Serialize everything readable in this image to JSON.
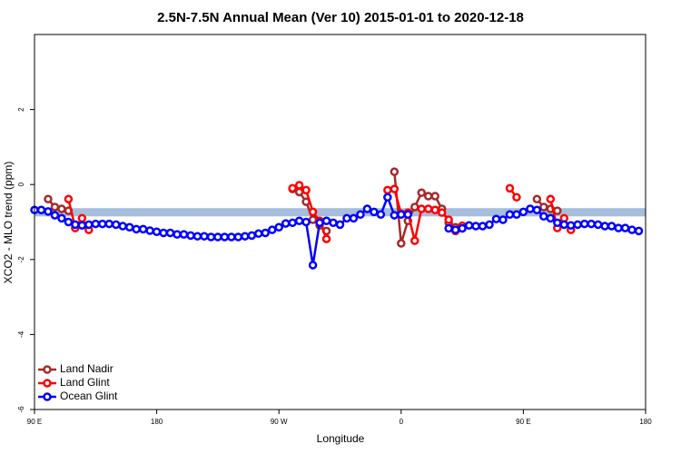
{
  "chart_data": {
    "type": "line",
    "title": "2.5N-7.5N Annual Mean (Ver 10)   2015-01-01 to 2020-12-18",
    "x_label": "Longitude",
    "y_label": "XCO2 - MLO trend (ppm)",
    "xlim": [
      90,
      540
    ],
    "ylim": [
      -6,
      4
    ],
    "xticks": [
      {
        "value": 90,
        "label": "90 E"
      },
      180,
      {
        "value": 270,
        "label": "90 W"
      },
      {
        "value": 360,
        "label": "0"
      },
      {
        "value": 450,
        "label": "90 E"
      },
      {
        "value": 540,
        "label": "180"
      }
    ],
    "yticks": [
      -6,
      -4,
      -2,
      0,
      2
    ],
    "reference_band": {
      "low": -0.85,
      "high": -0.63,
      "color": "#a6bddb"
    },
    "legend": "bottom-left",
    "x": [
      90,
      95,
      100,
      105,
      110,
      115,
      120,
      125,
      130,
      135,
      140,
      145,
      150,
      155,
      160,
      165,
      170,
      175,
      180,
      185,
      190,
      195,
      200,
      205,
      210,
      215,
      220,
      225,
      230,
      235,
      240,
      245,
      250,
      255,
      260,
      265,
      270,
      275,
      280,
      285,
      290,
      295,
      300,
      305,
      310,
      315,
      320,
      325,
      330,
      335,
      340,
      345,
      350,
      355,
      360,
      365,
      370,
      375,
      380,
      385,
      390,
      395,
      400,
      405,
      410,
      415,
      420,
      425,
      430,
      435,
      440,
      445,
      450,
      455,
      460,
      465,
      470,
      475,
      480,
      485,
      490,
      495,
      500,
      505,
      510,
      515,
      520,
      525,
      530,
      535,
      540
    ],
    "series": [
      {
        "name": "Land Nadir",
        "color": "#a52a2a",
        "values": [
          null,
          null,
          -0.39,
          -0.6,
          -0.65,
          -0.7,
          null,
          null,
          null,
          null,
          null,
          null,
          null,
          null,
          null,
          null,
          null,
          null,
          null,
          null,
          null,
          null,
          null,
          null,
          null,
          null,
          null,
          null,
          null,
          null,
          null,
          null,
          null,
          null,
          null,
          null,
          null,
          null,
          -0.12,
          -0.2,
          -0.46,
          -0.94,
          -1.09,
          -1.24,
          null,
          null,
          null,
          null,
          null,
          null,
          null,
          null,
          null,
          0.34,
          -1.57,
          -0.97,
          -0.6,
          -0.22,
          -0.31,
          -0.31,
          -0.65,
          -1.02,
          -1.14,
          null,
          null,
          null,
          null,
          null,
          null,
          null,
          null,
          null,
          null,
          null,
          -0.39,
          -0.6,
          -0.65,
          -0.7,
          null,
          null,
          null,
          null,
          null,
          null,
          null,
          null,
          null,
          null,
          null,
          null,
          null
        ]
      },
      {
        "name": "Land Glint",
        "color": "#ff0000",
        "values": [
          null,
          null,
          null,
          null,
          null,
          -0.39,
          -1.16,
          -0.9,
          -1.21,
          null,
          null,
          null,
          null,
          null,
          null,
          null,
          null,
          null,
          null,
          null,
          null,
          null,
          null,
          null,
          null,
          null,
          null,
          null,
          null,
          null,
          null,
          null,
          null,
          null,
          null,
          null,
          null,
          null,
          -0.1,
          -0.02,
          -0.15,
          -0.73,
          -0.97,
          -1.45,
          null,
          null,
          null,
          null,
          null,
          null,
          null,
          null,
          -0.15,
          -0.12,
          -0.78,
          -0.75,
          -1.5,
          -0.65,
          -0.65,
          -0.68,
          -0.75,
          -0.94,
          -1.24,
          -1.1,
          null,
          null,
          null,
          null,
          null,
          null,
          -0.1,
          -0.34,
          null,
          null,
          null,
          null,
          -0.39,
          -1.16,
          -0.9,
          -1.21,
          null,
          null,
          null,
          null,
          null,
          null,
          null,
          null,
          null,
          null,
          null
        ]
      },
      {
        "name": "Ocean Glint",
        "color": "#0000ff",
        "values": [
          -0.68,
          -0.68,
          -0.72,
          -0.82,
          -0.9,
          -1.0,
          -1.07,
          -1.09,
          -1.07,
          -1.05,
          -1.05,
          -1.05,
          -1.07,
          -1.11,
          -1.14,
          -1.19,
          -1.19,
          -1.23,
          -1.26,
          -1.29,
          -1.29,
          -1.33,
          -1.33,
          -1.36,
          -1.38,
          -1.38,
          -1.4,
          -1.4,
          -1.4,
          -1.4,
          -1.4,
          -1.38,
          -1.36,
          -1.31,
          -1.29,
          -1.21,
          -1.14,
          -1.04,
          -1.02,
          -0.97,
          -1.0,
          -2.15,
          -1.02,
          -0.97,
          -1.02,
          -1.07,
          -0.9,
          -0.9,
          -0.8,
          -0.65,
          -0.73,
          -0.8,
          -0.34,
          -0.82,
          -0.8,
          -0.8,
          null,
          null,
          null,
          null,
          null,
          -1.17,
          -1.21,
          -1.17,
          -1.09,
          -1.11,
          -1.11,
          -1.07,
          -0.92,
          -0.94,
          -0.8,
          -0.8,
          -0.73,
          -0.65,
          -0.68,
          -0.85,
          -0.9,
          -1.02,
          -1.07,
          -1.09,
          -1.07,
          -1.05,
          -1.05,
          -1.07,
          -1.11,
          -1.11,
          -1.16,
          -1.16,
          -1.21,
          -1.24,
          null
        ]
      }
    ]
  }
}
